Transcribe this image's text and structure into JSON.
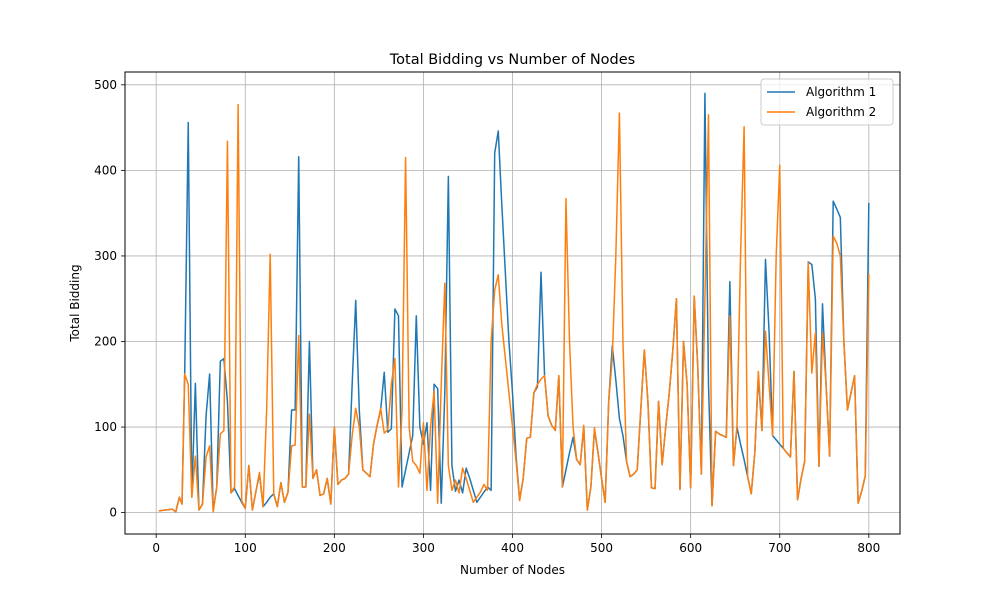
{
  "chart_data": {
    "type": "line",
    "title": "Total Bidding vs Number of Nodes",
    "xlabel": "Number of Nodes",
    "ylabel": "Total Bidding",
    "xlim": [
      -35,
      835
    ],
    "ylim": [
      -25,
      515
    ],
    "xticks": [
      0,
      100,
      200,
      300,
      400,
      500,
      600,
      700,
      800
    ],
    "yticks": [
      0,
      100,
      200,
      300,
      400,
      500
    ],
    "grid": true,
    "legend_position": "top-right",
    "series": [
      {
        "name": "Algorithm 1",
        "color": "#1f77b4",
        "x": [
          3,
          10,
          18,
          22,
          26,
          29,
          32,
          36,
          40,
          44,
          48,
          52,
          56,
          60,
          64,
          68,
          72,
          76,
          80,
          84,
          88,
          92,
          96,
          100,
          104,
          108,
          112,
          116,
          120,
          124,
          128,
          132,
          136,
          140,
          144,
          148,
          152,
          156,
          160,
          164,
          168,
          172,
          176,
          180,
          184,
          188,
          192,
          196,
          200,
          204,
          208,
          212,
          216,
          220,
          224,
          228,
          232,
          236,
          240,
          244,
          248,
          252,
          256,
          260,
          264,
          268,
          272,
          276,
          280,
          284,
          288,
          292,
          296,
          300,
          304,
          308,
          312,
          316,
          320,
          324,
          328,
          332,
          336,
          340,
          344,
          348,
          352,
          356,
          360,
          364,
          368,
          372,
          376,
          380,
          384,
          388,
          392,
          396,
          400,
          404,
          408,
          412,
          416,
          420,
          424,
          428,
          432,
          436,
          440,
          444,
          448,
          452,
          456,
          460,
          464,
          468,
          472,
          476,
          480,
          484,
          488,
          492,
          496,
          500,
          504,
          508,
          512,
          516,
          520,
          524,
          528,
          532,
          536,
          540,
          544,
          548,
          552,
          556,
          560,
          564,
          568,
          572,
          576,
          580,
          584,
          588,
          592,
          596,
          600,
          604,
          608,
          612,
          616,
          620,
          624,
          628,
          632,
          636,
          640,
          644,
          648,
          652,
          656,
          660,
          664,
          668,
          672,
          676,
          680,
          684,
          688,
          692,
          696,
          700,
          704,
          708,
          712,
          716,
          720,
          724,
          728,
          732,
          736,
          740,
          744,
          748,
          752,
          756,
          760,
          764,
          768,
          772,
          776,
          780,
          784,
          788,
          792,
          796,
          800
        ],
        "y": [
          2,
          3,
          4,
          1,
          18,
          10,
          160,
          456,
          18,
          151,
          3,
          10,
          113,
          162,
          2,
          30,
          177,
          180,
          130,
          23,
          28,
          20,
          12,
          5,
          55,
          3,
          25,
          45,
          7,
          12,
          18,
          22,
          7,
          35,
          12,
          24,
          120,
          120,
          416,
          30,
          30,
          200,
          40,
          50,
          20,
          22,
          40,
          10,
          100,
          33,
          38,
          40,
          45,
          150,
          248,
          120,
          50,
          46,
          42,
          80,
          102,
          120,
          164,
          94,
          98,
          238,
          230,
          30,
          50,
          70,
          90,
          230,
          100,
          80,
          105,
          26,
          150,
          145,
          11,
          140,
          393,
          55,
          25,
          38,
          23,
          52,
          40,
          26,
          12,
          18,
          24,
          30,
          26,
          420,
          446,
          360,
          280,
          200,
          140,
          66,
          15,
          40,
          87,
          88,
          140,
          147,
          281,
          160,
          113,
          102,
          96,
          160,
          30,
          50,
          70,
          88,
          62,
          56,
          100,
          3,
          30,
          97,
          70,
          40,
          12,
          130,
          195,
          155,
          110,
          90,
          60,
          42,
          45,
          50,
          120,
          190,
          130,
          29,
          28,
          130,
          56,
          100,
          140,
          190,
          250,
          27,
          200,
          150,
          29,
          253,
          170,
          45,
          490,
          150,
          8,
          95,
          92,
          90,
          88,
          270,
          55,
          100,
          80,
          62,
          42,
          22,
          70,
          160,
          96,
          296,
          212,
          90,
          85,
          80,
          75,
          70,
          65,
          165,
          15,
          40,
          60,
          293,
          290,
          250,
          54,
          244,
          150,
          66,
          364,
          355,
          345,
          200,
          120,
          140,
          160,
          11,
          25,
          43,
          362
        ]
      },
      {
        "name": "Algorithm 2",
        "color": "#ff7f0e",
        "x": [
          3,
          10,
          18,
          22,
          26,
          29,
          32,
          36,
          40,
          44,
          48,
          52,
          56,
          60,
          64,
          68,
          72,
          76,
          80,
          84,
          88,
          92,
          96,
          100,
          104,
          108,
          112,
          116,
          120,
          124,
          128,
          132,
          136,
          140,
          144,
          148,
          152,
          156,
          160,
          164,
          168,
          172,
          176,
          180,
          184,
          188,
          192,
          196,
          200,
          204,
          208,
          212,
          216,
          220,
          224,
          228,
          232,
          236,
          240,
          244,
          248,
          252,
          256,
          260,
          264,
          268,
          272,
          276,
          280,
          284,
          288,
          292,
          296,
          300,
          304,
          308,
          312,
          316,
          320,
          324,
          328,
          332,
          336,
          340,
          344,
          348,
          352,
          356,
          360,
          364,
          368,
          372,
          376,
          380,
          384,
          388,
          392,
          396,
          400,
          404,
          408,
          412,
          416,
          420,
          424,
          428,
          432,
          436,
          440,
          444,
          448,
          452,
          456,
          460,
          464,
          468,
          472,
          476,
          480,
          484,
          488,
          492,
          496,
          500,
          504,
          508,
          512,
          516,
          520,
          524,
          528,
          532,
          536,
          540,
          544,
          548,
          552,
          556,
          560,
          564,
          568,
          572,
          576,
          580,
          584,
          588,
          592,
          596,
          600,
          604,
          608,
          612,
          616,
          620,
          624,
          628,
          632,
          636,
          640,
          644,
          648,
          652,
          656,
          660,
          664,
          668,
          672,
          676,
          680,
          684,
          688,
          692,
          696,
          700,
          704,
          708,
          712,
          716,
          720,
          724,
          728,
          732,
          736,
          740,
          744,
          748,
          752,
          756,
          760,
          764,
          768,
          772,
          776,
          780,
          784,
          788,
          792,
          796,
          800
        ],
        "y": [
          2,
          3,
          4,
          1,
          18,
          10,
          162,
          150,
          18,
          66,
          3,
          10,
          65,
          78,
          1,
          30,
          92,
          96,
          434,
          23,
          30,
          477,
          14,
          5,
          55,
          3,
          25,
          47,
          7,
          120,
          302,
          22,
          7,
          35,
          12,
          24,
          78,
          79,
          207,
          30,
          30,
          115,
          40,
          50,
          20,
          22,
          40,
          10,
          100,
          33,
          38,
          40,
          45,
          90,
          122,
          100,
          50,
          46,
          42,
          80,
          102,
          122,
          93,
          97,
          150,
          180,
          30,
          120,
          415,
          100,
          60,
          55,
          46,
          105,
          26,
          100,
          142,
          11,
          150,
          268,
          55,
          26,
          38,
          23,
          52,
          40,
          26,
          12,
          18,
          24,
          33,
          26,
          200,
          260,
          278,
          220,
          180,
          140,
          100,
          60,
          14,
          40,
          87,
          88,
          140,
          150,
          156,
          160,
          113,
          102,
          96,
          160,
          30,
          367,
          200,
          100,
          62,
          56,
          102,
          3,
          30,
          99,
          70,
          40,
          12,
          130,
          180,
          300,
          467,
          200,
          60,
          42,
          45,
          50,
          120,
          190,
          130,
          29,
          28,
          130,
          56,
          100,
          140,
          190,
          250,
          27,
          200,
          150,
          29,
          253,
          170,
          45,
          250,
          465,
          8,
          95,
          92,
          90,
          88,
          230,
          55,
          100,
          300,
          451,
          42,
          22,
          70,
          165,
          96,
          212,
          150,
          90,
          300,
          406,
          75,
          70,
          65,
          165,
          15,
          40,
          60,
          292,
          163,
          210,
          54,
          210,
          150,
          66,
          323,
          315,
          300,
          200,
          120,
          140,
          160,
          11,
          25,
          43,
          279
        ]
      }
    ]
  }
}
